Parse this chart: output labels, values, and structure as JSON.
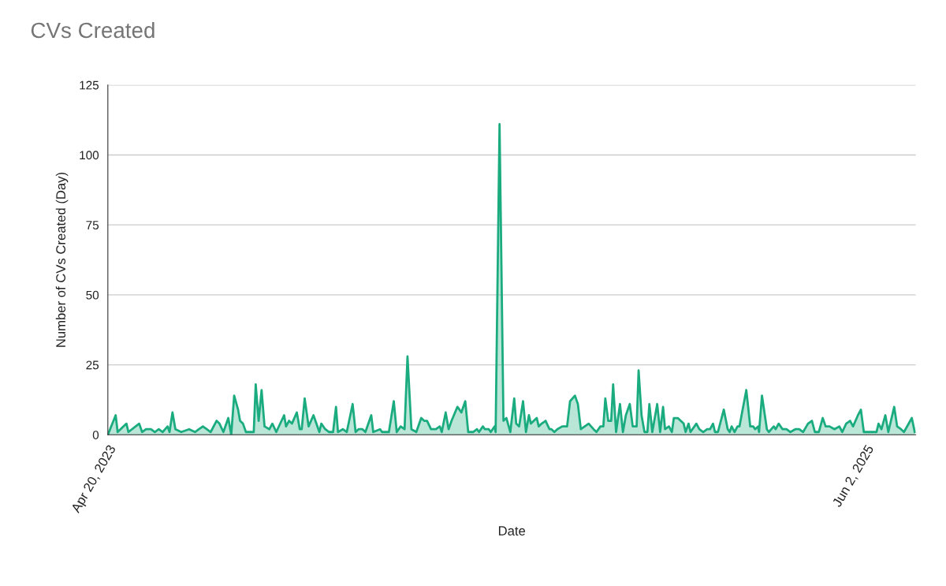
{
  "chart_data": {
    "type": "area",
    "title": "CVs Created",
    "xlabel": "Date",
    "ylabel": "Number of CVs Created (Day)",
    "xlim": [
      "2023-04-20",
      "2025-07-23"
    ],
    "xticks": [
      {
        "value": "2023-04-20",
        "label": "Apr 20, 2023"
      },
      {
        "value": "2025-06-02",
        "label": "Jun 2, 2025"
      }
    ],
    "ylim": [
      0,
      125
    ],
    "yticks": [
      0,
      25,
      50,
      75,
      100,
      125
    ],
    "grid": "y",
    "legend": false,
    "series": [
      {
        "color": "#1aab7f",
        "x": [
          "2023-04-20",
          "2023-04-28",
          "2023-04-30",
          "2023-05-09",
          "2023-05-11",
          "2023-05-22",
          "2023-05-25",
          "2023-05-29",
          "2023-06-03",
          "2023-06-07",
          "2023-06-11",
          "2023-06-15",
          "2023-06-20",
          "2023-06-22",
          "2023-06-25",
          "2023-06-28",
          "2023-07-04",
          "2023-07-12",
          "2023-07-18",
          "2023-07-22",
          "2023-07-26",
          "2023-07-30",
          "2023-08-03",
          "2023-08-09",
          "2023-08-12",
          "2023-08-16",
          "2023-08-21",
          "2023-08-24",
          "2023-08-27",
          "2023-08-31",
          "2023-09-02",
          "2023-09-05",
          "2023-09-08",
          "2023-09-16",
          "2023-09-18",
          "2023-09-21",
          "2023-09-24",
          "2023-09-27",
          "2023-10-02",
          "2023-10-05",
          "2023-10-09",
          "2023-10-17",
          "2023-10-19",
          "2023-10-22",
          "2023-10-25",
          "2023-10-30",
          "2023-11-02",
          "2023-11-04",
          "2023-11-07",
          "2023-11-11",
          "2023-11-16",
          "2023-11-22",
          "2023-11-24",
          "2023-11-28",
          "2023-12-02",
          "2023-12-06",
          "2023-12-09",
          "2023-12-11",
          "2023-12-16",
          "2023-12-20",
          "2023-12-26",
          "2023-12-29",
          "2024-01-01",
          "2024-01-05",
          "2024-01-08",
          "2024-01-14",
          "2024-01-16",
          "2024-01-23",
          "2024-01-25",
          "2024-02-01",
          "2024-02-06",
          "2024-02-09",
          "2024-02-13",
          "2024-02-17",
          "2024-02-20",
          "2024-02-24",
          "2024-02-29",
          "2024-03-05",
          "2024-03-08",
          "2024-03-11",
          "2024-03-15",
          "2024-03-20",
          "2024-03-24",
          "2024-03-26",
          "2024-03-30",
          "2024-04-02",
          "2024-04-05",
          "2024-04-11",
          "2024-04-15",
          "2024-04-19",
          "2024-04-22",
          "2024-04-27",
          "2024-05-01",
          "2024-05-03",
          "2024-05-07",
          "2024-05-09",
          "2024-05-13",
          "2024-05-15",
          "2024-05-19",
          "2024-05-20",
          "2024-05-24",
          "2024-05-28",
          "2024-05-31",
          "2024-06-04",
          "2024-06-08",
          "2024-06-10",
          "2024-06-13",
          "2024-06-17",
          "2024-06-20",
          "2024-06-23",
          "2024-06-25",
          "2024-06-28",
          "2024-07-01",
          "2024-07-03",
          "2024-07-06",
          "2024-07-10",
          "2024-07-14",
          "2024-07-16",
          "2024-07-19",
          "2024-07-22",
          "2024-07-27",
          "2024-08-01",
          "2024-08-04",
          "2024-08-09",
          "2024-08-12",
          "2024-08-15",
          "2024-08-23",
          "2024-08-28",
          "2024-08-31",
          "2024-09-04",
          "2024-09-07",
          "2024-09-09",
          "2024-09-12",
          "2024-09-15",
          "2024-09-17",
          "2024-09-20",
          "2024-09-24",
          "2024-09-27",
          "2024-09-30",
          "2024-10-04",
          "2024-10-07",
          "2024-10-11",
          "2024-10-13",
          "2024-10-16",
          "2024-10-19",
          "2024-10-22",
          "2024-10-24",
          "2024-10-27",
          "2024-11-01",
          "2024-11-04",
          "2024-11-07",
          "2024-11-09",
          "2024-11-13",
          "2024-11-16",
          "2024-11-18",
          "2024-11-22",
          "2024-11-25",
          "2024-11-28",
          "2024-11-30",
          "2024-12-03",
          "2024-12-05",
          "2024-12-11",
          "2024-12-14",
          "2024-12-18",
          "2024-12-22",
          "2024-12-25",
          "2024-12-28",
          "2024-12-30",
          "2025-01-02",
          "2025-01-08",
          "2025-01-12",
          "2025-01-14",
          "2025-01-16",
          "2025-01-19",
          "2025-01-22",
          "2025-01-24",
          "2025-01-31",
          "2025-02-04",
          "2025-02-07",
          "2025-02-09",
          "2025-02-12",
          "2025-02-13",
          "2025-02-16",
          "2025-02-21",
          "2025-02-23",
          "2025-02-28",
          "2025-03-02",
          "2025-03-05",
          "2025-03-09",
          "2025-03-13",
          "2025-03-17",
          "2025-03-22",
          "2025-03-26",
          "2025-03-30",
          "2025-04-04",
          "2025-04-08",
          "2025-04-11",
          "2025-04-15",
          "2025-04-19",
          "2025-04-22",
          "2025-04-26",
          "2025-05-01",
          "2025-05-06",
          "2025-05-09",
          "2025-05-13",
          "2025-05-17",
          "2025-05-20",
          "2025-05-25",
          "2025-05-28",
          "2025-05-31",
          "2025-06-13",
          "2025-06-15",
          "2025-06-18",
          "2025-06-22",
          "2025-06-25",
          "2025-07-01",
          "2025-07-04",
          "2025-07-08",
          "2025-07-11",
          "2025-07-19",
          "2025-07-22"
        ],
        "values": [
          0,
          7,
          1,
          4,
          1,
          4,
          1,
          2,
          2,
          1,
          2,
          1,
          3,
          1,
          8,
          2,
          1,
          2,
          1,
          2,
          3,
          2,
          1,
          5,
          4,
          1,
          6,
          0,
          14,
          9,
          5,
          4,
          1,
          1,
          18,
          5,
          16,
          3,
          2,
          4,
          1,
          7,
          3,
          5,
          4,
          8,
          2,
          2,
          13,
          3,
          7,
          1,
          4,
          2,
          1,
          1,
          10,
          1,
          2,
          1,
          11,
          1,
          2,
          2,
          1,
          7,
          1,
          2,
          1,
          1,
          12,
          1,
          3,
          2,
          28,
          2,
          1,
          6,
          5,
          5,
          2,
          2,
          3,
          1,
          8,
          2,
          5,
          10,
          8,
          12,
          1,
          1,
          2,
          1,
          3,
          2,
          2,
          1,
          3,
          1,
          111,
          5,
          6,
          1,
          13,
          4,
          3,
          12,
          1,
          7,
          4,
          5,
          6,
          3,
          4,
          5,
          2,
          2,
          1,
          2,
          3,
          3,
          12,
          14,
          11,
          2,
          4,
          2,
          1,
          3,
          3,
          13,
          5,
          5,
          18,
          1,
          11,
          1,
          7,
          11,
          3,
          3,
          23,
          7,
          1,
          1,
          11,
          1,
          11,
          1,
          10,
          2,
          3,
          1,
          6,
          6,
          5,
          4,
          1,
          4,
          1,
          4,
          2,
          1,
          2,
          2,
          4,
          1,
          1,
          9,
          2,
          1,
          3,
          1,
          3,
          3,
          16,
          3,
          3,
          2,
          3,
          1,
          14,
          2,
          1,
          3,
          2,
          4,
          2,
          2,
          1,
          2,
          2,
          1,
          4,
          5,
          1,
          1,
          6,
          3,
          3,
          2,
          3,
          1,
          4,
          5,
          3,
          7,
          9,
          1,
          1,
          4,
          2,
          7,
          1,
          10,
          3,
          2,
          1,
          6,
          1
        ]
      }
    ]
  }
}
